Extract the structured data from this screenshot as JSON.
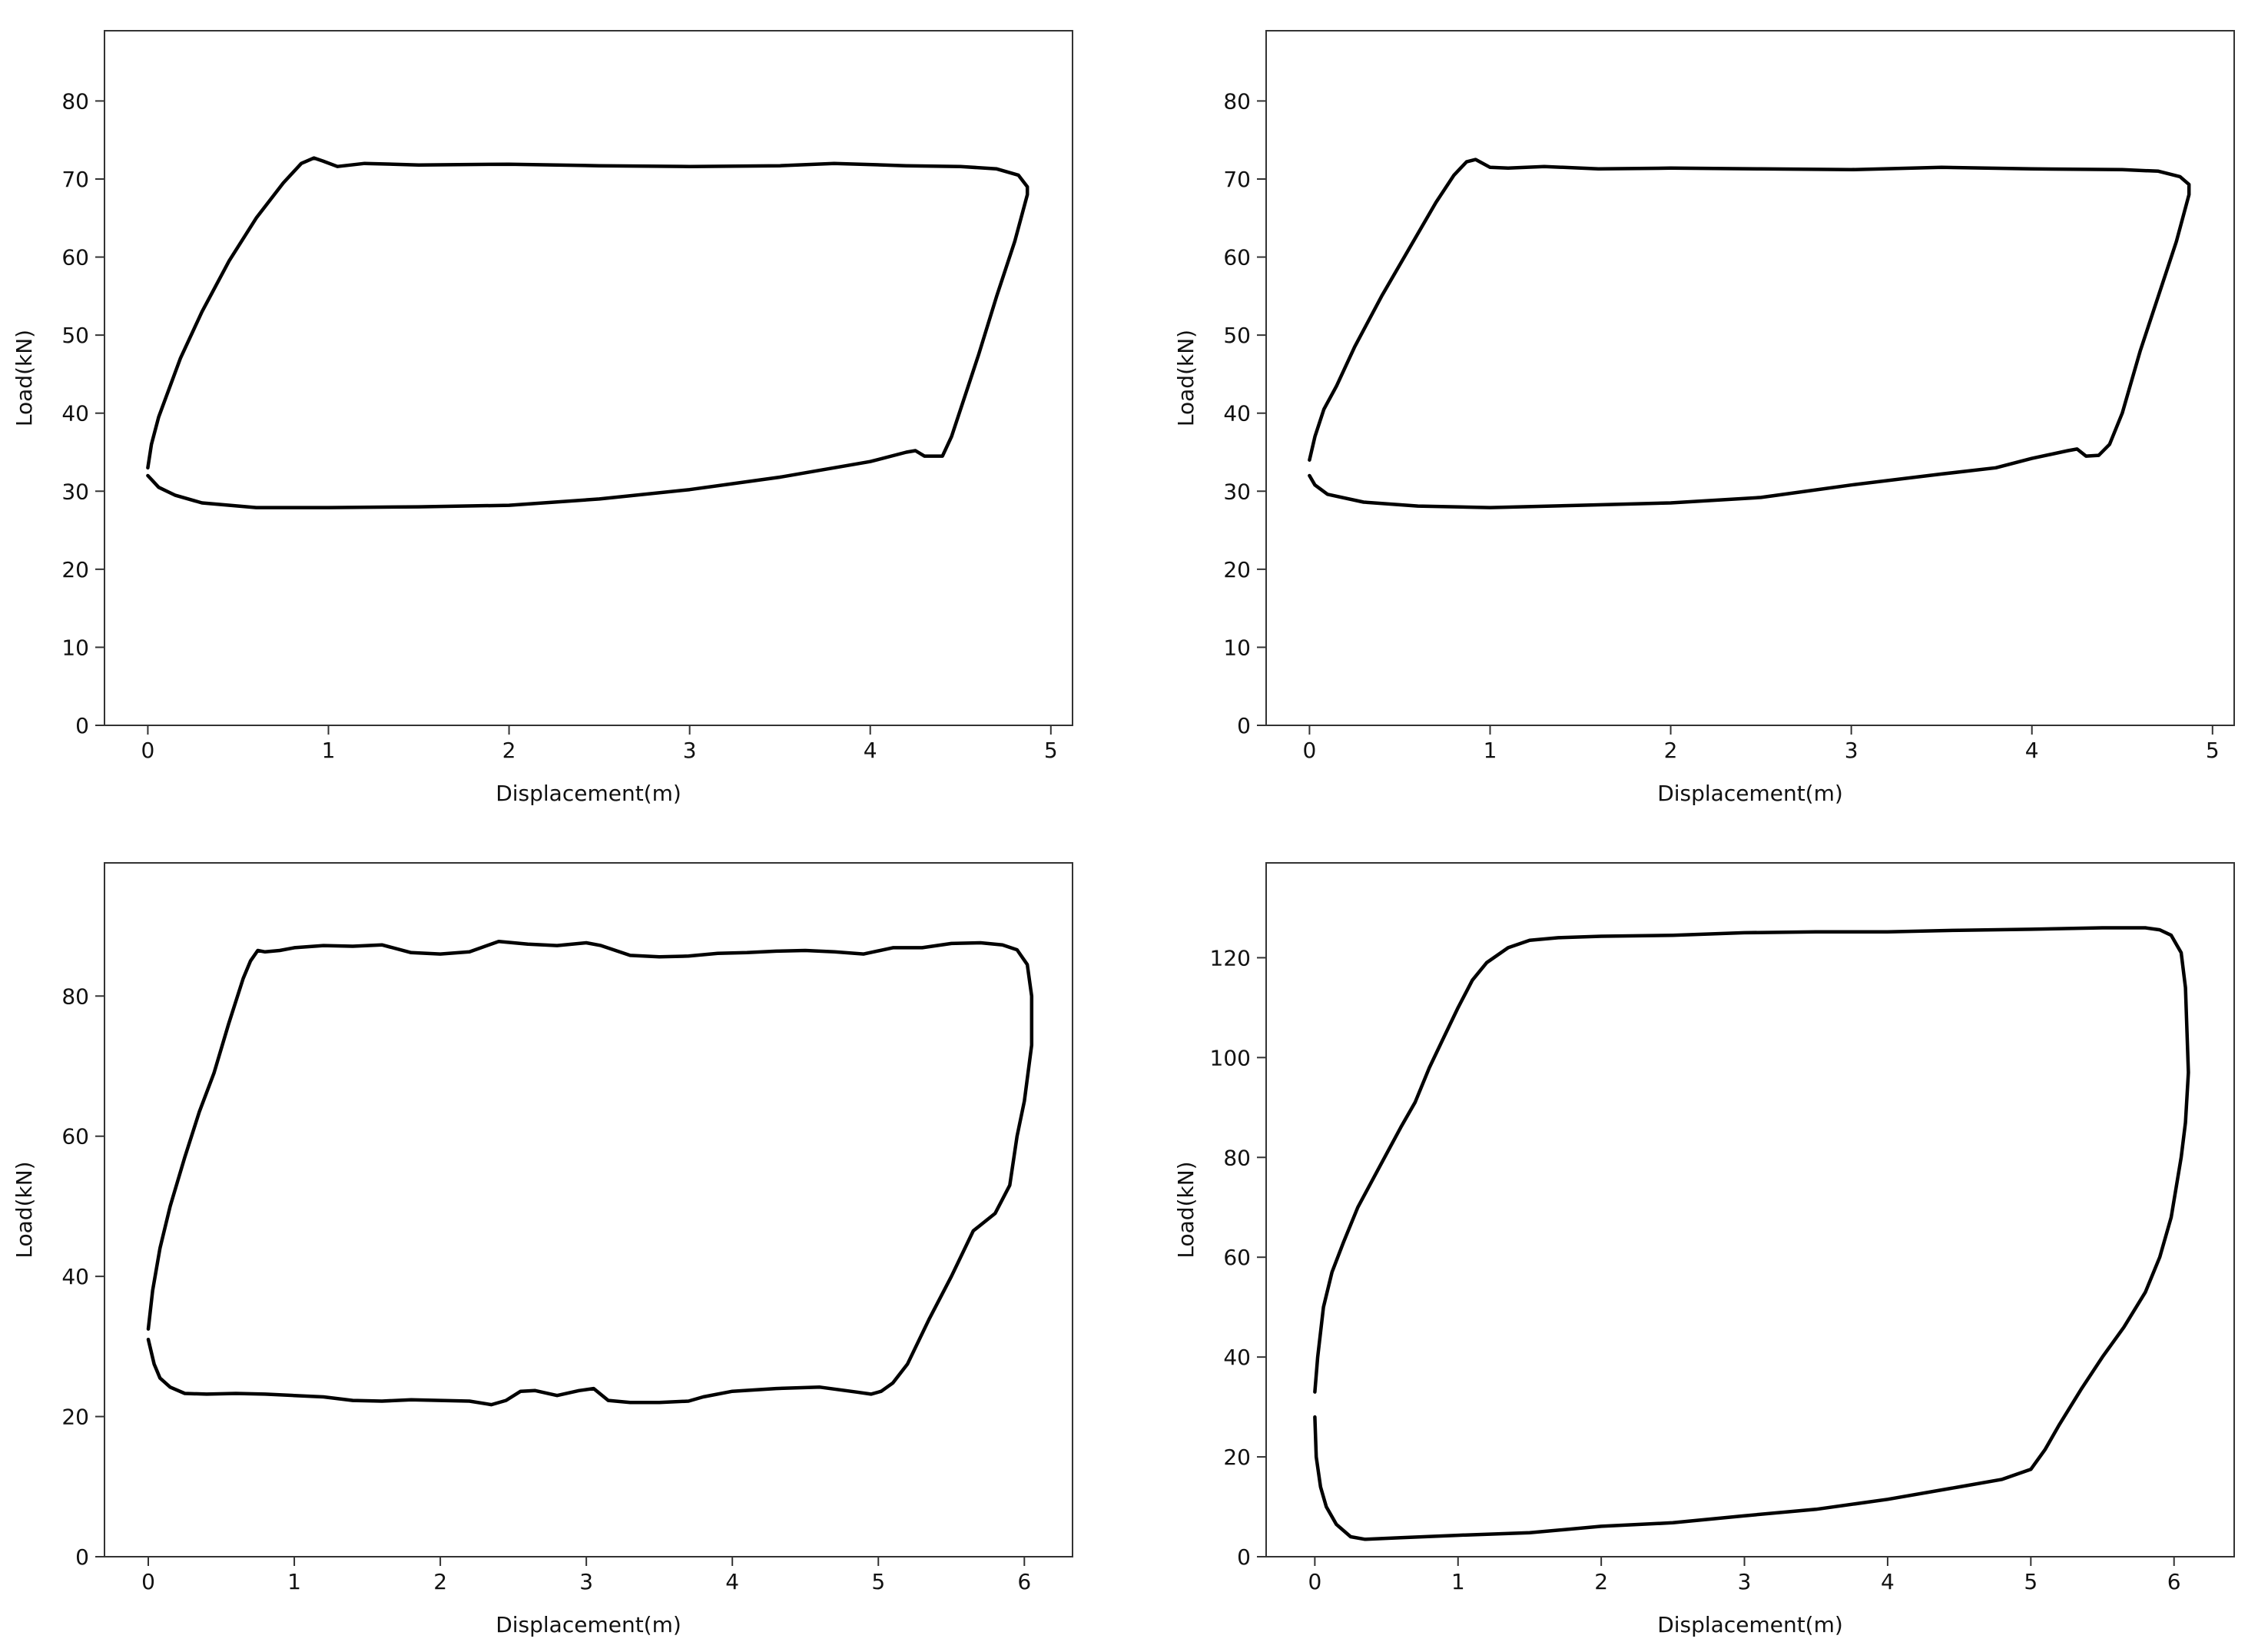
{
  "chart_data": [
    {
      "type": "line",
      "xlabel": "Displacement(m)",
      "ylabel": "Load(kN)",
      "xlim": [
        -0.24,
        5.12
      ],
      "ylim": [
        0,
        89
      ],
      "xticks": [
        0,
        1,
        2,
        3,
        4,
        5
      ],
      "yticks": [
        0,
        10,
        20,
        30,
        40,
        50,
        60,
        70,
        80
      ],
      "grid": false,
      "series": [
        {
          "x": [
            0,
            0.02,
            0.06,
            0.1,
            0.18,
            0.3,
            0.45,
            0.6,
            0.75,
            0.85,
            0.92,
            0.97,
            1.05,
            1.2,
            1.5,
            2.0,
            2.5,
            3.0,
            3.5,
            3.8,
            4.2,
            4.5,
            4.7,
            4.82,
            4.87,
            4.87,
            4.8,
            4.7,
            4.6,
            4.5,
            4.45,
            4.4,
            4.3,
            4.25,
            4.2,
            4.0,
            3.8,
            3.5,
            3.0,
            2.5,
            2.0,
            1.5,
            1.0,
            0.6,
            0.3,
            0.15,
            0.06,
            0.02,
            0.0
          ],
          "y": [
            33,
            36,
            39.5,
            42,
            47,
            53,
            59.5,
            65,
            69.5,
            72,
            72.7,
            72.3,
            71.6,
            72,
            71.8,
            71.9,
            71.7,
            71.6,
            71.7,
            72,
            71.7,
            71.6,
            71.3,
            70.5,
            69,
            68,
            62,
            55,
            47.5,
            40.5,
            37,
            34.5,
            34.5,
            35.2,
            35,
            33.8,
            33,
            31.8,
            30.2,
            29,
            28.2,
            28,
            27.9,
            27.9,
            28.5,
            29.5,
            30.5,
            31.5,
            32
          ]
        }
      ]
    },
    {
      "type": "line",
      "xlabel": "Displacement(m)",
      "ylabel": "Load(kN)",
      "xlim": [
        -0.24,
        5.12
      ],
      "ylim": [
        0,
        89
      ],
      "xticks": [
        0,
        1,
        2,
        3,
        4,
        5
      ],
      "yticks": [
        0,
        10,
        20,
        30,
        40,
        50,
        60,
        70,
        80
      ],
      "grid": false,
      "series": [
        {
          "x": [
            0,
            0.03,
            0.08,
            0.15,
            0.25,
            0.4,
            0.55,
            0.7,
            0.8,
            0.87,
            0.92,
            1.0,
            1.1,
            1.3,
            1.6,
            2.0,
            2.5,
            3.0,
            3.5,
            4.0,
            4.5,
            4.7,
            4.82,
            4.87,
            4.87,
            4.8,
            4.7,
            4.6,
            4.5,
            4.43,
            4.37,
            4.3,
            4.25,
            4.2,
            4.0,
            3.8,
            3.5,
            3.0,
            2.5,
            2.0,
            1.5,
            1.0,
            0.6,
            0.3,
            0.1,
            0.03,
            0.0
          ],
          "y": [
            34,
            37,
            40.5,
            43.5,
            48.5,
            55,
            61,
            67,
            70.5,
            72.2,
            72.5,
            71.5,
            71.4,
            71.6,
            71.3,
            71.4,
            71.3,
            71.2,
            71.5,
            71.3,
            71.2,
            71,
            70.3,
            69.3,
            68,
            62,
            55,
            48,
            40,
            36,
            34.6,
            34.5,
            35.4,
            35.2,
            34.2,
            33,
            32.2,
            30.8,
            29.2,
            28.5,
            28.2,
            27.9,
            28.1,
            28.6,
            29.6,
            30.8,
            32
          ]
        }
      ]
    },
    {
      "type": "line",
      "xlabel": "Displacement(m)",
      "ylabel": "Load(kN)",
      "xlim": [
        -0.3,
        6.33
      ],
      "ylim": [
        0,
        99
      ],
      "xticks": [
        0,
        1,
        2,
        3,
        4,
        5,
        6
      ],
      "yticks": [
        0,
        20,
        40,
        60,
        80
      ],
      "grid": false,
      "series": [
        {
          "x": [
            0,
            0.03,
            0.08,
            0.15,
            0.25,
            0.35,
            0.45,
            0.55,
            0.65,
            0.7,
            0.75,
            0.8,
            0.9,
            1.0,
            1.2,
            1.4,
            1.6,
            1.8,
            2.0,
            2.2,
            2.4,
            2.6,
            2.8,
            3.0,
            3.1,
            3.3,
            3.5,
            3.7,
            3.9,
            4.1,
            4.3,
            4.5,
            4.7,
            4.9,
            5.1,
            5.3,
            5.5,
            5.7,
            5.85,
            5.95,
            6.02,
            6.05,
            6.05,
            6.0,
            5.95,
            5.9,
            5.8,
            5.65,
            5.5,
            5.35,
            5.2,
            5.1,
            5.02,
            4.95,
            4.85,
            4.6,
            4.3,
            4.0,
            3.8,
            3.7,
            3.5,
            3.3,
            3.15,
            3.05,
            2.95,
            2.8,
            2.65,
            2.55,
            2.45,
            2.35,
            2.2,
            2.0,
            1.8,
            1.6,
            1.4,
            1.2,
            1.0,
            0.8,
            0.6,
            0.4,
            0.25,
            0.15,
            0.08,
            0.04,
            0.0
          ],
          "y": [
            32.5,
            38,
            44,
            50,
            57,
            63.5,
            69,
            76,
            82.5,
            85,
            86.5,
            86.3,
            86.5,
            86.9,
            87.2,
            87.1,
            87.3,
            86.2,
            86,
            86.3,
            87.8,
            87.4,
            87.2,
            87.6,
            87.2,
            85.8,
            85.6,
            85.7,
            86.1,
            86.2,
            86.4,
            86.5,
            86.3,
            86,
            86.9,
            86.9,
            87.5,
            87.6,
            87.3,
            86.6,
            84.5,
            80,
            73,
            65,
            60,
            53,
            49,
            46.5,
            40,
            34,
            27.5,
            24.8,
            23.6,
            23.2,
            23.5,
            24.2,
            24,
            23.6,
            22.8,
            22.2,
            22,
            22,
            22.3,
            24,
            23.7,
            23,
            23.7,
            23.6,
            22.3,
            21.7,
            22.2,
            22.3,
            22.4,
            22.2,
            22.3,
            22.8,
            23,
            23.2,
            23.3,
            23.2,
            23.3,
            24.2,
            25.5,
            27.5,
            31
          ]
        }
      ]
    },
    {
      "type": "line",
      "xlabel": "Displacement(m)",
      "ylabel": "Load(kN)",
      "xlim": [
        -0.34,
        6.42
      ],
      "ylim": [
        0,
        139
      ],
      "xticks": [
        0,
        1,
        2,
        3,
        4,
        5,
        6
      ],
      "yticks": [
        0,
        20,
        40,
        60,
        80,
        100,
        120
      ],
      "grid": false,
      "series": [
        {
          "x": [
            0,
            0.02,
            0.06,
            0.12,
            0.2,
            0.3,
            0.45,
            0.6,
            0.7,
            0.8,
            0.9,
            1.0,
            1.1,
            1.2,
            1.35,
            1.5,
            1.7,
            2.0,
            2.5,
            3.0,
            3.5,
            4.0,
            4.5,
            5.0,
            5.5,
            5.8,
            5.9,
            5.98,
            6.05,
            6.08,
            6.1,
            6.08,
            6.05,
            5.98,
            5.9,
            5.8,
            5.65,
            5.5,
            5.35,
            5.2,
            5.1,
            5.0,
            4.8,
            4.5,
            4.0,
            3.5,
            3.0,
            2.5,
            2.0,
            1.5,
            1.0,
            0.6,
            0.35,
            0.25,
            0.15,
            0.08,
            0.04,
            0.01,
            0.0
          ],
          "y": [
            33,
            40,
            50,
            57,
            63,
            70,
            78,
            86,
            91,
            98,
            104,
            110,
            115.5,
            119,
            122,
            123.5,
            124,
            124.3,
            124.5,
            125,
            125.2,
            125.2,
            125.5,
            125.7,
            126,
            126,
            125.6,
            124.5,
            121,
            114,
            97,
            87,
            80,
            68,
            60,
            53,
            46,
            40,
            33.5,
            26.5,
            21.5,
            17.5,
            15.5,
            14,
            11.5,
            9.5,
            8.2,
            6.8,
            6.1,
            4.8,
            4.3,
            3.8,
            3.5,
            4,
            6.5,
            10,
            14,
            20,
            28
          ]
        }
      ]
    }
  ]
}
